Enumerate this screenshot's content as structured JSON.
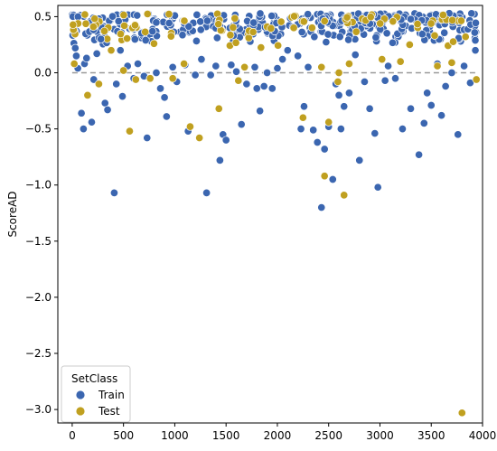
{
  "chart_data": {
    "type": "scatter",
    "title": "",
    "xlabel": "",
    "ylabel": "ScoreAD",
    "xlim": [
      -140,
      4000
    ],
    "ylim": [
      -3.12,
      0.6
    ],
    "xticks": [
      0,
      500,
      1000,
      1500,
      2000,
      2500,
      3000,
      3500,
      4000
    ],
    "yticks": [
      0.5,
      0.0,
      -0.5,
      -1.0,
      -1.5,
      -2.0,
      -2.5,
      -3.0
    ],
    "ytick_labels": [
      "0.5",
      "0.0",
      "−0.5",
      "−1.0",
      "−1.5",
      "−2.0",
      "−2.5",
      "−3.0"
    ],
    "reference_line": 0.0,
    "grid": false,
    "legend": {
      "title": "SetClass",
      "placement": "lower-left",
      "entries": [
        "Train",
        "Test"
      ]
    },
    "colors": {
      "Train": "#3b66b0",
      "Test": "#c0a020"
    },
    "series": [
      {
        "name": "Train",
        "band": {
          "x_min": 0,
          "x_max": 3950,
          "y_min": 0.25,
          "y_max": 0.53,
          "count": 340
        },
        "points": [
          [
            30,
            0.22
          ],
          [
            40,
            0.15
          ],
          [
            55,
            0.04
          ],
          [
            90,
            -0.36
          ],
          [
            110,
            -0.5
          ],
          [
            120,
            0.08
          ],
          [
            140,
            0.13
          ],
          [
            190,
            -0.44
          ],
          [
            210,
            -0.06
          ],
          [
            240,
            0.17
          ],
          [
            280,
            0.3
          ],
          [
            320,
            -0.27
          ],
          [
            345,
            -0.33
          ],
          [
            410,
            -1.07
          ],
          [
            430,
            -0.1
          ],
          [
            470,
            0.2
          ],
          [
            490,
            -0.21
          ],
          [
            540,
            0.06
          ],
          [
            600,
            -0.05
          ],
          [
            640,
            0.08
          ],
          [
            700,
            -0.03
          ],
          [
            730,
            -0.58
          ],
          [
            820,
            0.0
          ],
          [
            860,
            -0.14
          ],
          [
            900,
            -0.22
          ],
          [
            920,
            -0.39
          ],
          [
            980,
            0.05
          ],
          [
            1020,
            -0.08
          ],
          [
            1100,
            0.07
          ],
          [
            1130,
            -0.52
          ],
          [
            1200,
            -0.02
          ],
          [
            1260,
            0.12
          ],
          [
            1310,
            -1.07
          ],
          [
            1350,
            -0.02
          ],
          [
            1400,
            0.06
          ],
          [
            1440,
            -0.78
          ],
          [
            1470,
            -0.55
          ],
          [
            1500,
            -0.6
          ],
          [
            1550,
            0.07
          ],
          [
            1600,
            0.01
          ],
          [
            1650,
            -0.46
          ],
          [
            1700,
            -0.1
          ],
          [
            1780,
            0.05
          ],
          [
            1800,
            -0.14
          ],
          [
            1830,
            -0.34
          ],
          [
            1870,
            -0.12
          ],
          [
            1900,
            0.0
          ],
          [
            1950,
            -0.14
          ],
          [
            2000,
            0.04
          ],
          [
            2050,
            0.12
          ],
          [
            2100,
            0.2
          ],
          [
            2200,
            0.15
          ],
          [
            2230,
            -0.5
          ],
          [
            2260,
            -0.3
          ],
          [
            2300,
            0.05
          ],
          [
            2350,
            -0.51
          ],
          [
            2390,
            -0.62
          ],
          [
            2430,
            -1.2
          ],
          [
            2460,
            -0.68
          ],
          [
            2500,
            -0.48
          ],
          [
            2540,
            -0.95
          ],
          [
            2570,
            -0.1
          ],
          [
            2600,
            -0.2
          ],
          [
            2620,
            -0.5
          ],
          [
            2650,
            -0.3
          ],
          [
            2700,
            -0.18
          ],
          [
            2760,
            0.16
          ],
          [
            2800,
            -0.78
          ],
          [
            2850,
            -0.08
          ],
          [
            2900,
            -0.32
          ],
          [
            2950,
            -0.54
          ],
          [
            2980,
            -1.02
          ],
          [
            3050,
            -0.07
          ],
          [
            3080,
            0.06
          ],
          [
            3150,
            -0.05
          ],
          [
            3220,
            -0.5
          ],
          [
            3300,
            -0.32
          ],
          [
            3380,
            -0.73
          ],
          [
            3430,
            -0.45
          ],
          [
            3460,
            -0.18
          ],
          [
            3500,
            -0.29
          ],
          [
            3560,
            0.08
          ],
          [
            3600,
            -0.38
          ],
          [
            3640,
            -0.12
          ],
          [
            3700,
            0.0
          ],
          [
            3760,
            -0.55
          ],
          [
            3820,
            0.06
          ],
          [
            3880,
            -0.09
          ],
          [
            3930,
            0.2
          ]
        ]
      },
      {
        "name": "Test",
        "band": {
          "x_min": 0,
          "x_max": 3950,
          "y_min": 0.22,
          "y_max": 0.53,
          "count": 90
        },
        "points": [
          [
            20,
            0.08
          ],
          [
            150,
            -0.2
          ],
          [
            260,
            -0.1
          ],
          [
            380,
            0.2
          ],
          [
            500,
            0.02
          ],
          [
            560,
            -0.52
          ],
          [
            620,
            -0.06
          ],
          [
            760,
            -0.05
          ],
          [
            980,
            -0.05
          ],
          [
            1090,
            0.08
          ],
          [
            1150,
            -0.48
          ],
          [
            1240,
            -0.58
          ],
          [
            1430,
            -0.32
          ],
          [
            1620,
            -0.07
          ],
          [
            1680,
            0.05
          ],
          [
            2250,
            -0.4
          ],
          [
            2430,
            0.05
          ],
          [
            2460,
            -0.92
          ],
          [
            2500,
            -0.44
          ],
          [
            2590,
            -0.08
          ],
          [
            2600,
            0.0
          ],
          [
            2650,
            -1.09
          ],
          [
            2700,
            0.08
          ],
          [
            3020,
            0.12
          ],
          [
            3200,
            0.1
          ],
          [
            3560,
            0.06
          ],
          [
            3700,
            0.09
          ],
          [
            3800,
            -3.03
          ],
          [
            3940,
            -0.06
          ]
        ]
      }
    ]
  }
}
